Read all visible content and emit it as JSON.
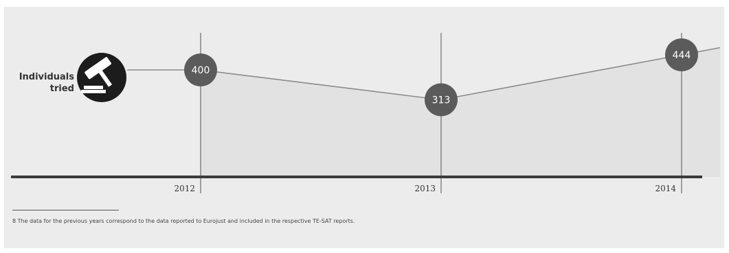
{
  "series_label": "Individuals\ntried",
  "footnote": "8  The data for the previous years correspond to the data reported to Eurojust and included in the respective TE-SAT reports.",
  "icon": "gavel-icon",
  "colors": {
    "panel": "#ececec",
    "area": "#e2e2e2",
    "line": "#8a8a8a",
    "marker": "#5b5b5b",
    "axis": "#3a3a3a",
    "icon_bg": "#1c1c1c"
  },
  "chart_data": {
    "type": "line",
    "categories": [
      "2012",
      "2013",
      "2014"
    ],
    "series": [
      {
        "values": [
          400,
          313,
          444
        ]
      }
    ],
    "data_labels": [
      "400",
      "313",
      "444"
    ],
    "title": "",
    "xlabel": "",
    "ylabel": "",
    "ylim": [
      200,
      500
    ],
    "grid": false,
    "legend": "none"
  }
}
